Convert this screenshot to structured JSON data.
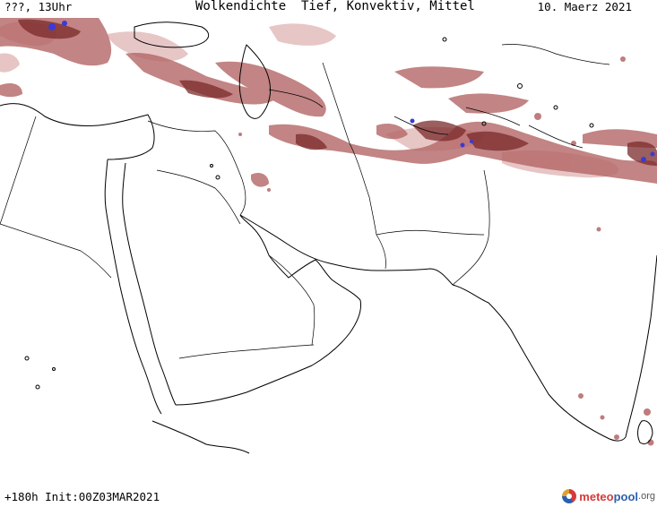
{
  "header": {
    "left": "???, 13Uhr",
    "title": "Wolkendichte  Tief, Konvektiv, Mittel",
    "date": "10. Maerz 2021"
  },
  "footer": {
    "forecast": "+180h Init:00Z03MAR2021"
  },
  "logo": {
    "part1": "meteo",
    "part2": "pool",
    "part3": ".org"
  },
  "colors": {
    "background": "#ffffff",
    "coastline": "#000000",
    "cloud_light": "#e3bcbc",
    "cloud_medium": "#b46666",
    "cloud_dense": "#7a2a2a",
    "cloud_max": "#3a3ad8"
  }
}
